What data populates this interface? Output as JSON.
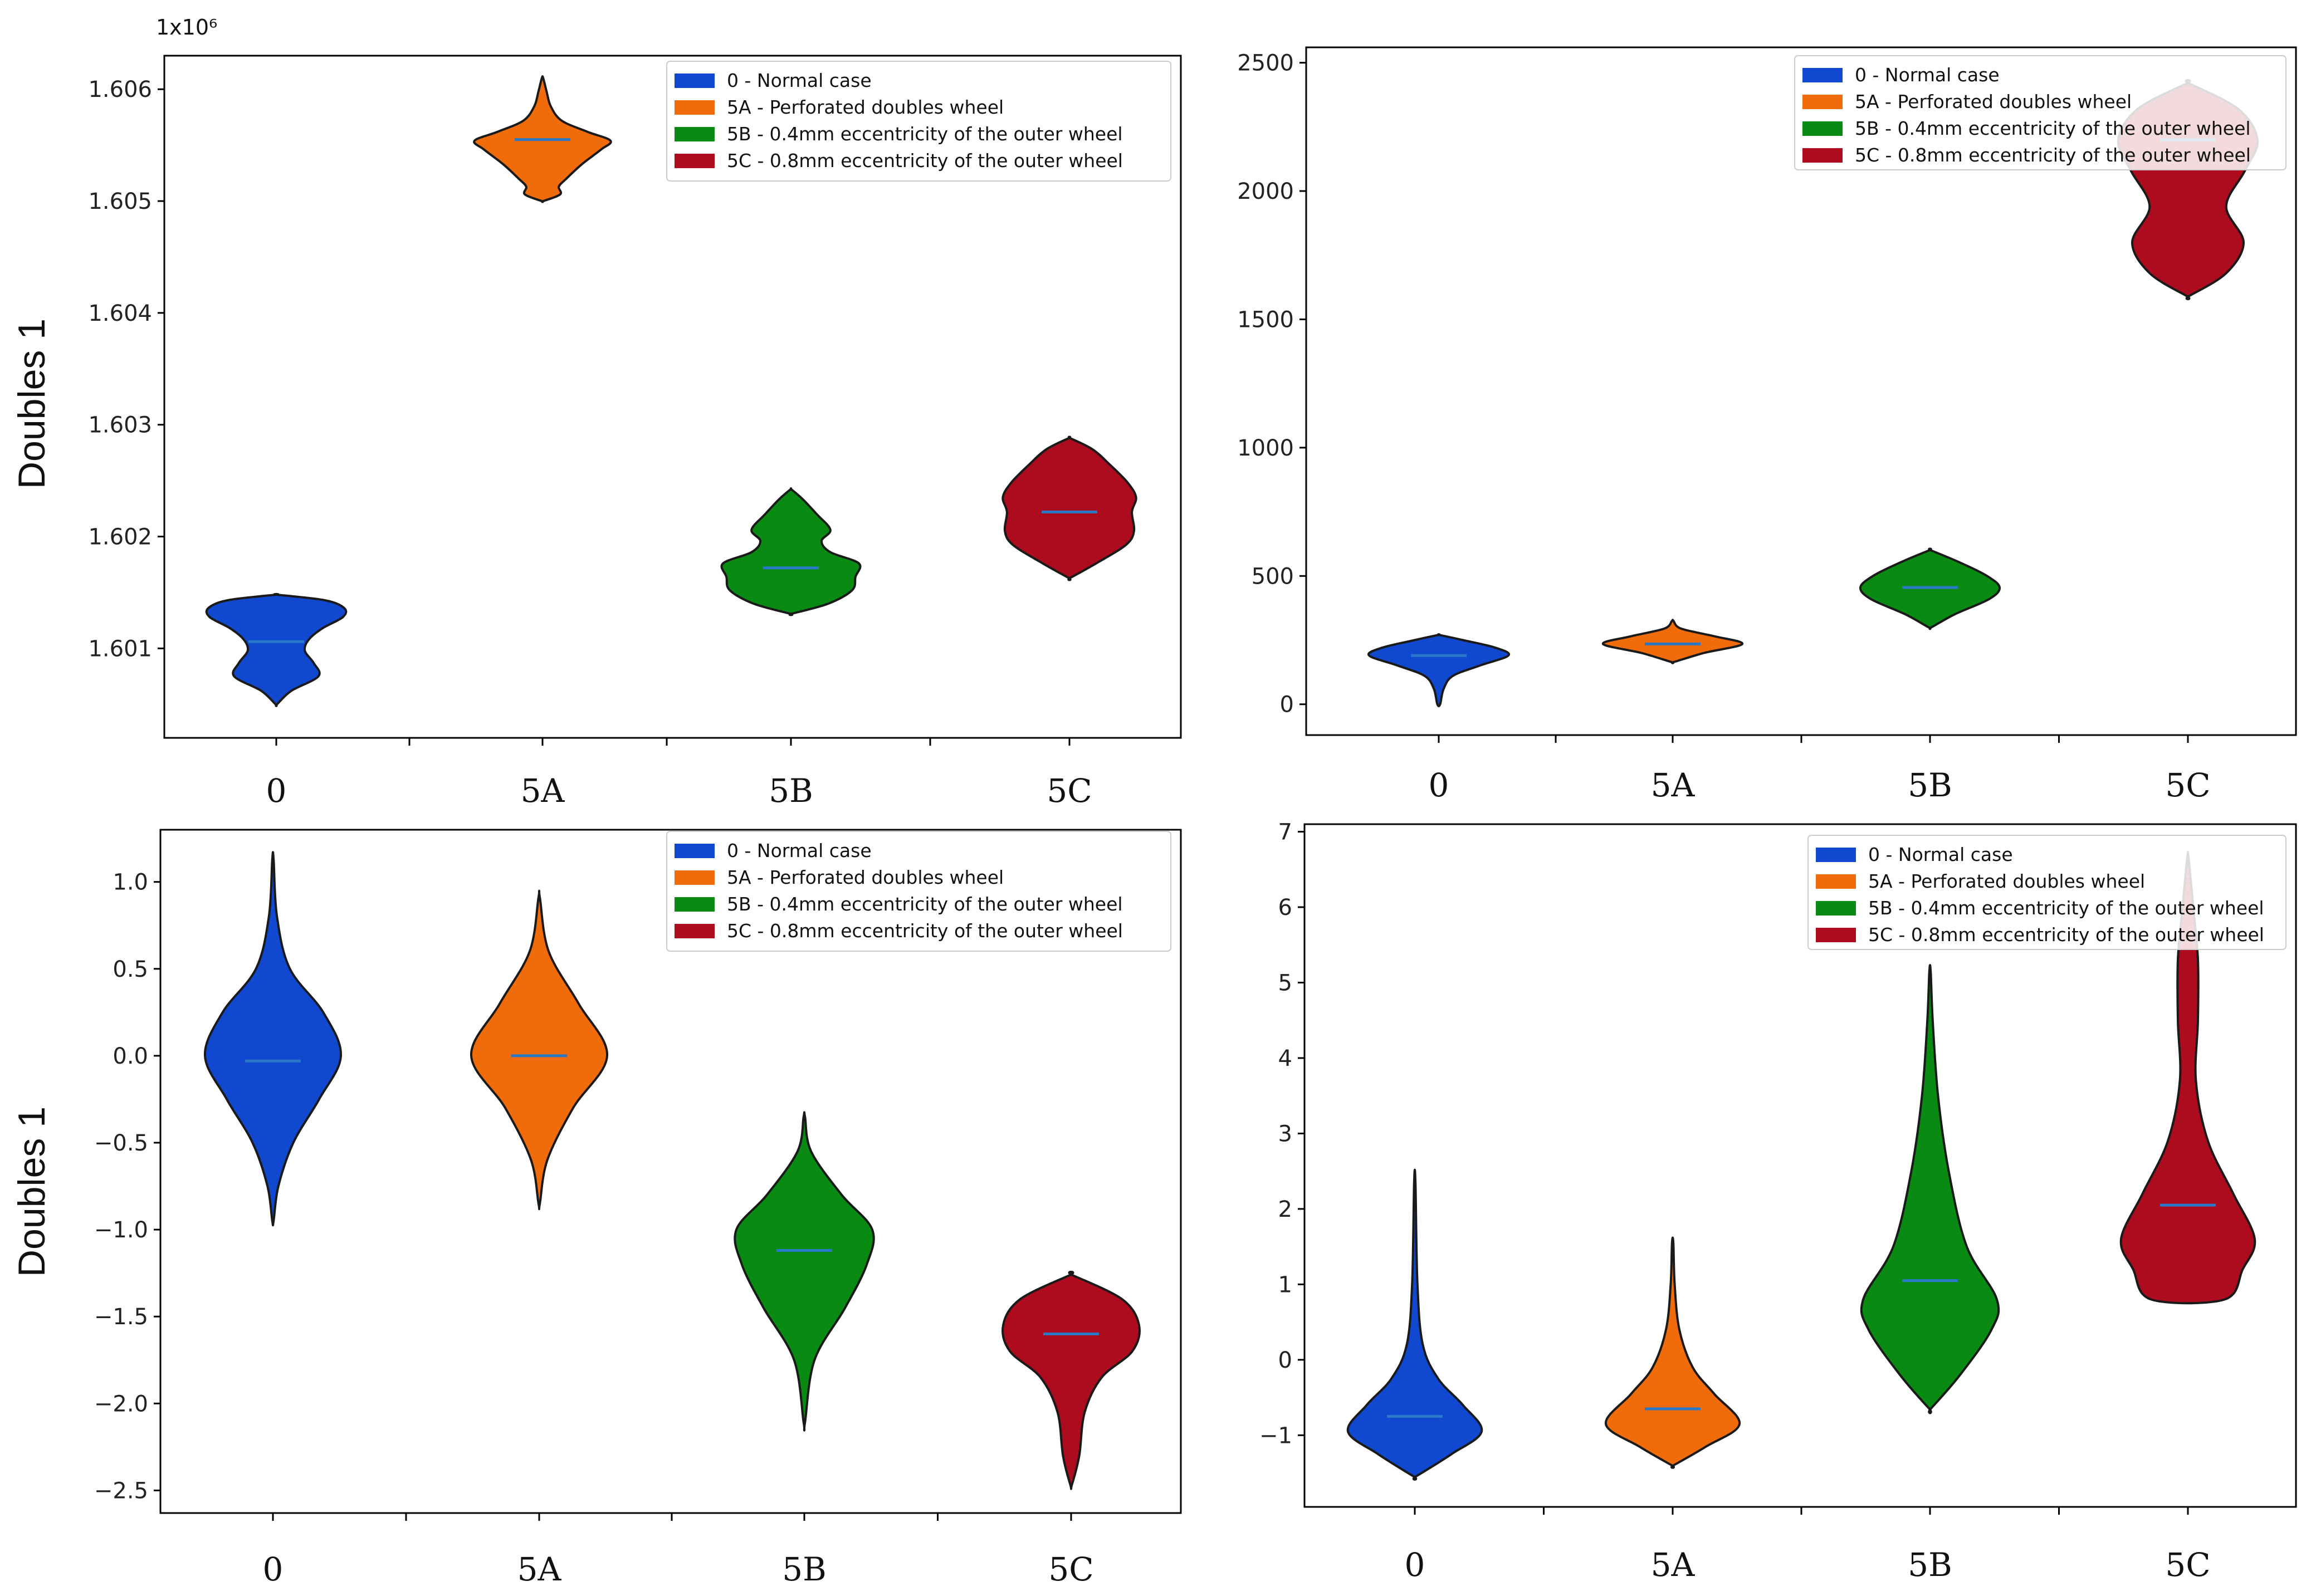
{
  "colors": {
    "0": "#1148d0",
    "5A": "#f06c0b",
    "5B": "#098a12",
    "5C": "#ac0c1e",
    "median": "#2a78c8",
    "axis": "#000000"
  },
  "legend": [
    {
      "key": "0",
      "label": "0 - Normal case"
    },
    {
      "key": "5A",
      "label": "5A - Perforated doubles wheel"
    },
    {
      "key": "5B",
      "label": "5B - 0.4mm eccentricity of the outer wheel"
    },
    {
      "key": "5C",
      "label": "5C - 0.8mm eccentricity of the outer wheel"
    }
  ],
  "chart_data": [
    {
      "type": "violin",
      "panel": "top-left",
      "title": "",
      "xlabel": "",
      "ylabel": "Doubles 1",
      "yaxis_multiplier_label": "1x10⁶",
      "categories": [
        "0",
        "5A",
        "5B",
        "5C"
      ],
      "ylim": [
        1600200,
        1606300
      ],
      "yticks": [
        1601000,
        1602000,
        1603000,
        1604000,
        1605000,
        1606000
      ],
      "ytick_labels": [
        "1.601",
        "1.602",
        "1.603",
        "1.604",
        "1.605",
        "1.606"
      ],
      "legend_position": "top-right",
      "series": [
        {
          "name": "0",
          "median": 1601060,
          "min": 1600500,
          "max": 1601480,
          "profile": [
            [
              1600500,
              0.01
            ],
            [
              1600620,
              0.22
            ],
            [
              1600750,
              0.62
            ],
            [
              1600870,
              0.55
            ],
            [
              1600980,
              0.42
            ],
            [
              1601080,
              0.48
            ],
            [
              1601180,
              0.68
            ],
            [
              1601280,
              0.98
            ],
            [
              1601360,
              1.0
            ],
            [
              1601430,
              0.72
            ],
            [
              1601480,
              0.01
            ]
          ]
        },
        {
          "name": "5A",
          "median": 1605550,
          "min": 1605000,
          "max": 1606100,
          "profile": [
            [
              1605000,
              0.01
            ],
            [
              1605060,
              0.26
            ],
            [
              1605130,
              0.24
            ],
            [
              1605200,
              0.35
            ],
            [
              1605330,
              0.58
            ],
            [
              1605460,
              0.86
            ],
            [
              1605540,
              1.0
            ],
            [
              1605620,
              0.66
            ],
            [
              1605720,
              0.28
            ],
            [
              1605850,
              0.12
            ],
            [
              1605980,
              0.06
            ],
            [
              1606100,
              0.01
            ]
          ]
        },
        {
          "name": "5B",
          "median": 1601720,
          "min": 1601310,
          "max": 1602420,
          "profile": [
            [
              1601310,
              0.01
            ],
            [
              1601400,
              0.55
            ],
            [
              1601520,
              0.9
            ],
            [
              1601640,
              0.95
            ],
            [
              1601760,
              1.0
            ],
            [
              1601860,
              0.58
            ],
            [
              1601960,
              0.45
            ],
            [
              1602060,
              0.58
            ],
            [
              1602200,
              0.38
            ],
            [
              1602330,
              0.18
            ],
            [
              1602420,
              0.01
            ]
          ]
        },
        {
          "name": "5C",
          "median": 1602220,
          "min": 1601630,
          "max": 1602880,
          "profile": [
            [
              1601630,
              0.01
            ],
            [
              1601780,
              0.45
            ],
            [
              1601930,
              0.84
            ],
            [
              1602050,
              0.95
            ],
            [
              1602220,
              0.92
            ],
            [
              1602350,
              0.98
            ],
            [
              1602480,
              0.86
            ],
            [
              1602640,
              0.6
            ],
            [
              1602780,
              0.34
            ],
            [
              1602880,
              0.01
            ]
          ]
        }
      ]
    },
    {
      "type": "violin",
      "panel": "top-right",
      "title": "",
      "xlabel": "",
      "ylabel": "",
      "categories": [
        "0",
        "5A",
        "5B",
        "5C"
      ],
      "ylim": [
        -120,
        2560
      ],
      "yticks": [
        0,
        500,
        1000,
        1500,
        2000,
        2500
      ],
      "ytick_labels": [
        "0",
        "500",
        "1000",
        "1500",
        "2000",
        "2500"
      ],
      "legend_position": "top-right",
      "series": [
        {
          "name": "0",
          "median": 190,
          "min": 0,
          "max": 270,
          "profile": [
            [
              0,
              0.02
            ],
            [
              60,
              0.07
            ],
            [
              110,
              0.2
            ],
            [
              150,
              0.58
            ],
            [
              190,
              1.0
            ],
            [
              220,
              0.82
            ],
            [
              250,
              0.35
            ],
            [
              270,
              0.01
            ]
          ]
        },
        {
          "name": "5A",
          "median": 235,
          "min": 165,
          "max": 325,
          "profile": [
            [
              165,
              0.02
            ],
            [
              200,
              0.45
            ],
            [
              235,
              1.0
            ],
            [
              265,
              0.6
            ],
            [
              295,
              0.12
            ],
            [
              325,
              0.01
            ]
          ]
        },
        {
          "name": "5B",
          "median": 455,
          "min": 300,
          "max": 600,
          "profile": [
            [
              300,
              0.02
            ],
            [
              350,
              0.35
            ],
            [
              410,
              0.85
            ],
            [
              455,
              1.0
            ],
            [
              500,
              0.82
            ],
            [
              550,
              0.45
            ],
            [
              600,
              0.01
            ]
          ]
        },
        {
          "name": "5C",
          "median": 2200,
          "min": 1590,
          "max": 2420,
          "profile": [
            [
              1590,
              0.01
            ],
            [
              1680,
              0.55
            ],
            [
              1800,
              0.8
            ],
            [
              1940,
              0.55
            ],
            [
              2080,
              0.82
            ],
            [
              2200,
              1.0
            ],
            [
              2320,
              0.72
            ],
            [
              2420,
              0.01
            ]
          ]
        }
      ]
    },
    {
      "type": "violin",
      "panel": "bottom-left",
      "title": "",
      "xlabel": "",
      "ylabel": "Doubles 1",
      "categories": [
        "0",
        "5A",
        "5B",
        "5C"
      ],
      "ylim": [
        -2.63,
        1.3
      ],
      "yticks": [
        1.0,
        0.5,
        0.0,
        -0.5,
        -1.0,
        -1.5,
        -2.0,
        -2.5
      ],
      "ytick_labels": [
        "1.0",
        "0.5",
        "0.0",
        "−0.5",
        "−1.0",
        "−1.5",
        "−2.0",
        "−2.5"
      ],
      "legend_position": "top-right",
      "series": [
        {
          "name": "0",
          "median": -0.03,
          "min": -0.95,
          "max": 1.13,
          "profile": [
            [
              -0.95,
              0.01
            ],
            [
              -0.75,
              0.08
            ],
            [
              -0.5,
              0.3
            ],
            [
              -0.25,
              0.68
            ],
            [
              0.0,
              1.0
            ],
            [
              0.25,
              0.74
            ],
            [
              0.5,
              0.25
            ],
            [
              0.8,
              0.06
            ],
            [
              1.13,
              0.01
            ]
          ]
        },
        {
          "name": "5A",
          "median": 0.0,
          "min": -0.85,
          "max": 0.91,
          "profile": [
            [
              -0.85,
              0.01
            ],
            [
              -0.6,
              0.12
            ],
            [
              -0.3,
              0.5
            ],
            [
              0.0,
              1.0
            ],
            [
              0.3,
              0.58
            ],
            [
              0.6,
              0.14
            ],
            [
              0.91,
              0.01
            ]
          ]
        },
        {
          "name": "5B",
          "median": -1.12,
          "min": -2.11,
          "max": -0.35,
          "profile": [
            [
              -2.11,
              0.01
            ],
            [
              -1.75,
              0.15
            ],
            [
              -1.45,
              0.6
            ],
            [
              -1.2,
              0.92
            ],
            [
              -1.0,
              1.0
            ],
            [
              -0.8,
              0.55
            ],
            [
              -0.55,
              0.1
            ],
            [
              -0.35,
              0.01
            ]
          ]
        },
        {
          "name": "5C",
          "median": -1.6,
          "min": -2.47,
          "max": -1.26,
          "profile": [
            [
              -2.47,
              0.01
            ],
            [
              -2.3,
              0.12
            ],
            [
              -2.05,
              0.2
            ],
            [
              -1.85,
              0.45
            ],
            [
              -1.7,
              0.9
            ],
            [
              -1.55,
              1.0
            ],
            [
              -1.4,
              0.75
            ],
            [
              -1.26,
              0.01
            ]
          ]
        }
      ]
    },
    {
      "type": "violin",
      "panel": "bottom-right",
      "title": "",
      "xlabel": "",
      "ylabel": "",
      "categories": [
        "0",
        "5A",
        "5B",
        "5C"
      ],
      "ylim": [
        -1.95,
        7.1
      ],
      "yticks": [
        -1,
        0,
        1,
        2,
        3,
        4,
        5,
        6,
        7
      ],
      "ytick_labels": [
        "−1",
        "0",
        "1",
        "2",
        "3",
        "4",
        "5",
        "6",
        "7"
      ],
      "legend_position": "top-right",
      "series": [
        {
          "name": "0",
          "median": -0.75,
          "min": -1.55,
          "max": 2.35,
          "profile": [
            [
              -1.55,
              0.01
            ],
            [
              -1.25,
              0.55
            ],
            [
              -0.95,
              1.0
            ],
            [
              -0.6,
              0.72
            ],
            [
              -0.25,
              0.35
            ],
            [
              0.2,
              0.12
            ],
            [
              1.0,
              0.04
            ],
            [
              2.35,
              0.01
            ]
          ]
        },
        {
          "name": "5A",
          "median": -0.65,
          "min": -1.4,
          "max": 1.55,
          "profile": [
            [
              -1.4,
              0.01
            ],
            [
              -1.15,
              0.5
            ],
            [
              -0.85,
              1.0
            ],
            [
              -0.45,
              0.62
            ],
            [
              -0.1,
              0.3
            ],
            [
              0.4,
              0.1
            ],
            [
              1.0,
              0.03
            ],
            [
              1.55,
              0.01
            ]
          ]
        },
        {
          "name": "5B",
          "median": 1.05,
          "min": -0.65,
          "max": 5.15,
          "profile": [
            [
              -0.65,
              0.01
            ],
            [
              -0.2,
              0.45
            ],
            [
              0.4,
              0.92
            ],
            [
              0.8,
              1.0
            ],
            [
              1.5,
              0.55
            ],
            [
              2.5,
              0.28
            ],
            [
              3.5,
              0.12
            ],
            [
              4.5,
              0.04
            ],
            [
              5.15,
              0.01
            ]
          ]
        },
        {
          "name": "5C",
          "median": 2.05,
          "min": 0.8,
          "max": 6.65,
          "profile": [
            [
              0.8,
              0.55
            ],
            [
              1.2,
              0.82
            ],
            [
              1.6,
              1.0
            ],
            [
              2.2,
              0.68
            ],
            [
              2.9,
              0.3
            ],
            [
              3.7,
              0.12
            ],
            [
              4.5,
              0.15
            ],
            [
              5.3,
              0.15
            ],
            [
              6.0,
              0.08
            ],
            [
              6.65,
              0.01
            ]
          ]
        }
      ]
    }
  ]
}
